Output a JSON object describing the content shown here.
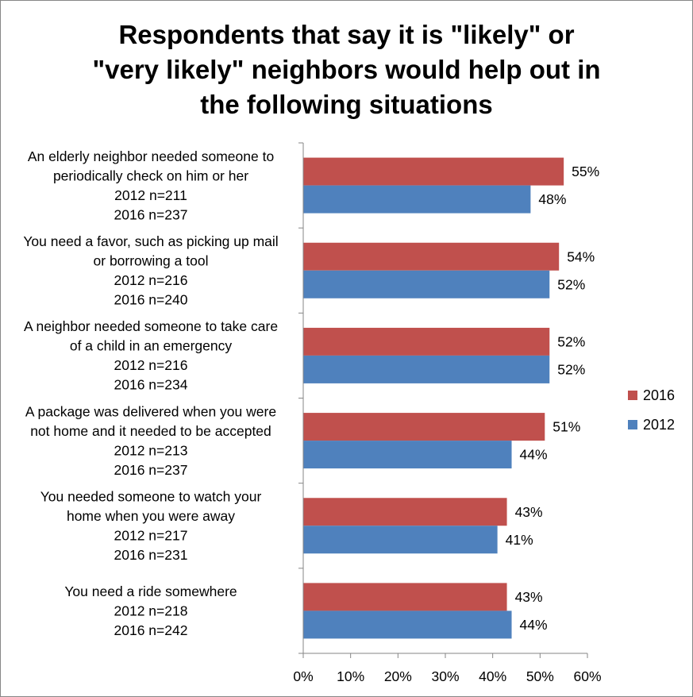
{
  "chart_data": {
    "type": "bar",
    "orientation": "horizontal",
    "title_lines": [
      "Respondents that say it is \"likely\" or",
      "\"very likely\" neighbors would help out in",
      "the following situations"
    ],
    "categories": [
      {
        "lines": [
          "An elderly neighbor needed someone to",
          "periodically check on him or her",
          "2012 n=211",
          "2016 n=237"
        ]
      },
      {
        "lines": [
          "You need a favor, such as picking up mail",
          "or borrowing a tool",
          "2012 n=216",
          "2016 n=240"
        ]
      },
      {
        "lines": [
          "A neighbor needed someone to take care",
          "of a child in an emergency",
          "2012 n=216",
          "2016 n=234"
        ]
      },
      {
        "lines": [
          "A package was delivered when you were",
          "not home and it needed to be accepted",
          "2012 n=213",
          "2016 n=237"
        ]
      },
      {
        "lines": [
          "You needed someone to watch your",
          "home when you were away",
          "2012 n=217",
          "2016 n=231"
        ]
      },
      {
        "lines": [
          "You need a ride somewhere",
          "2012 n=218",
          "2016 n=242"
        ]
      }
    ],
    "series": [
      {
        "name": "2016",
        "color": "#C0504D",
        "values": [
          55,
          54,
          52,
          51,
          43,
          43
        ],
        "labels": [
          "55%",
          "54%",
          "52%",
          "51%",
          "43%",
          "43%"
        ]
      },
      {
        "name": "2012",
        "color": "#4F81BD",
        "values": [
          48,
          52,
          52,
          44,
          41,
          44
        ],
        "labels": [
          "48%",
          "52%",
          "52%",
          "44%",
          "41%",
          "44%"
        ]
      }
    ],
    "xlim": [
      0,
      60
    ],
    "xticks": [
      "0%",
      "10%",
      "20%",
      "30%",
      "40%",
      "50%",
      "60%"
    ],
    "legend_position": "right",
    "grid": false
  }
}
